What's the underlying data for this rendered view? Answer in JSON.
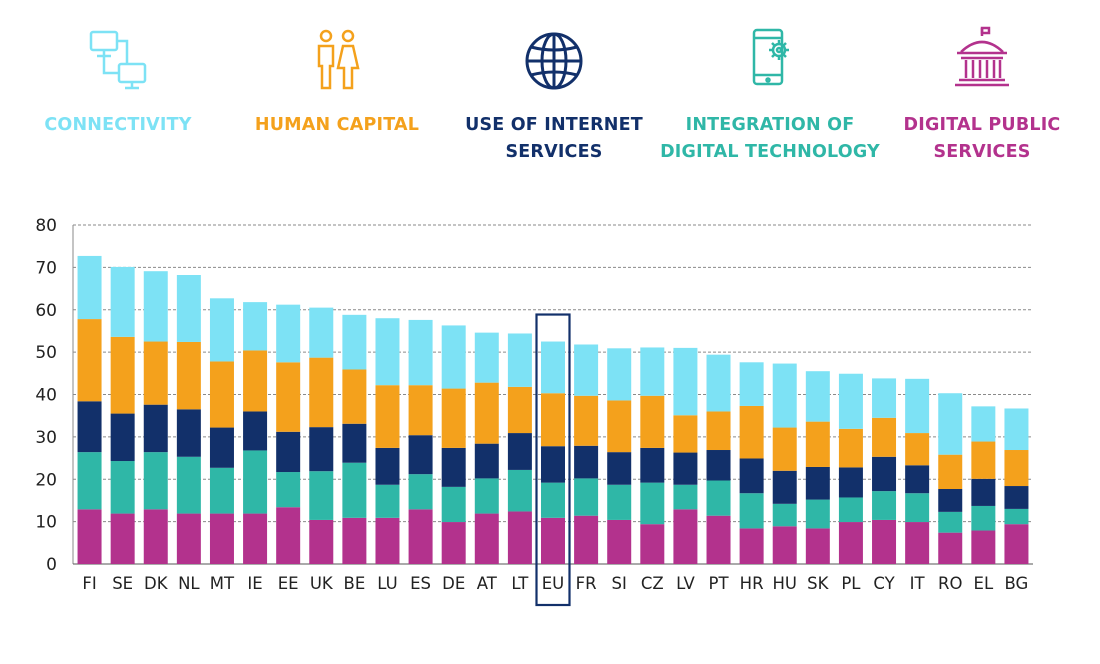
{
  "legend": [
    {
      "key": "dps",
      "label": "CONNECTIVITY",
      "color": "#7de2f5",
      "icon": "connectivity-icon"
    },
    {
      "key": "hc",
      "label": "HUMAN CAPITAL",
      "color": "#f4a11c",
      "icon": "human-capital-icon"
    },
    {
      "key": "uis",
      "label": "USE OF INTERNET\nSERVICES",
      "color": "#12306a",
      "icon": "globe-icon"
    },
    {
      "key": "idt",
      "label": "INTEGRATION OF\nDIGITAL TECHNOLOGY",
      "color": "#2fb7a7",
      "icon": "phone-gear-icon"
    },
    {
      "key": "conn",
      "label": "DIGITAL PUBLIC\nSERVICES",
      "color": "#b3328d",
      "icon": "government-building-icon"
    }
  ],
  "chart_data": {
    "type": "bar",
    "stacked": true,
    "highlight": "EU",
    "categories": [
      "FI",
      "SE",
      "DK",
      "NL",
      "MT",
      "IE",
      "EE",
      "UK",
      "BE",
      "LU",
      "ES",
      "DE",
      "AT",
      "LT",
      "EU",
      "FR",
      "SI",
      "CZ",
      "LV",
      "PT",
      "HR",
      "HU",
      "SK",
      "PL",
      "CY",
      "IT",
      "RO",
      "EL",
      "BG"
    ],
    "ylim": [
      0,
      80
    ],
    "yticks": [
      0,
      10,
      20,
      30,
      40,
      50,
      60,
      70,
      80
    ],
    "grid": true,
    "series": [
      {
        "name": "DIGITAL PUBLIC SERVICES",
        "color": "#b3328d",
        "values": [
          12.9,
          11.9,
          12.9,
          11.9,
          11.9,
          11.9,
          13.4,
          10.4,
          10.9,
          10.9,
          12.9,
          9.9,
          11.9,
          12.4,
          10.9,
          11.4,
          10.4,
          9.4,
          12.9,
          11.4,
          8.4,
          8.9,
          8.4,
          9.9,
          10.4,
          9.9,
          7.4,
          7.9,
          9.4
        ]
      },
      {
        "name": "INTEGRATION OF DIGITAL TECHNOLOGY",
        "color": "#2fb7a7",
        "values": [
          13.5,
          12.4,
          13.5,
          13.4,
          10.8,
          14.9,
          8.3,
          11.5,
          13.0,
          7.8,
          8.3,
          8.3,
          8.3,
          9.8,
          8.3,
          8.8,
          8.3,
          9.8,
          5.8,
          8.3,
          8.3,
          5.3,
          6.8,
          5.8,
          6.8,
          6.8,
          4.9,
          5.8,
          3.6
        ]
      },
      {
        "name": "USE OF INTERNET SERVICES",
        "color": "#12306a",
        "values": [
          12.0,
          11.2,
          11.2,
          11.2,
          9.5,
          9.2,
          9.5,
          10.4,
          9.2,
          8.7,
          9.2,
          9.2,
          8.2,
          8.7,
          8.6,
          7.7,
          7.7,
          8.2,
          7.6,
          7.2,
          8.2,
          7.8,
          7.7,
          7.1,
          8.1,
          6.6,
          5.4,
          6.4,
          5.4
        ]
      },
      {
        "name": "HUMAN CAPITAL",
        "color": "#f4a11c",
        "values": [
          19.4,
          18.1,
          14.9,
          15.9,
          15.6,
          14.4,
          16.4,
          16.4,
          12.8,
          14.8,
          11.8,
          14.0,
          14.4,
          10.9,
          12.5,
          11.8,
          12.2,
          12.3,
          8.8,
          9.1,
          12.4,
          10.2,
          10.7,
          9.1,
          9.2,
          7.6,
          8.1,
          8.8,
          8.5
        ]
      },
      {
        "name": "CONNECTIVITY",
        "color": "#7de2f5",
        "values": [
          14.9,
          16.5,
          16.6,
          15.8,
          14.9,
          11.4,
          13.6,
          11.8,
          12.9,
          15.8,
          15.4,
          14.9,
          11.8,
          12.6,
          12.2,
          12.1,
          12.3,
          11.4,
          15.9,
          13.4,
          10.3,
          15.1,
          11.9,
          13.0,
          9.3,
          12.8,
          14.5,
          8.3,
          9.8
        ]
      }
    ]
  }
}
